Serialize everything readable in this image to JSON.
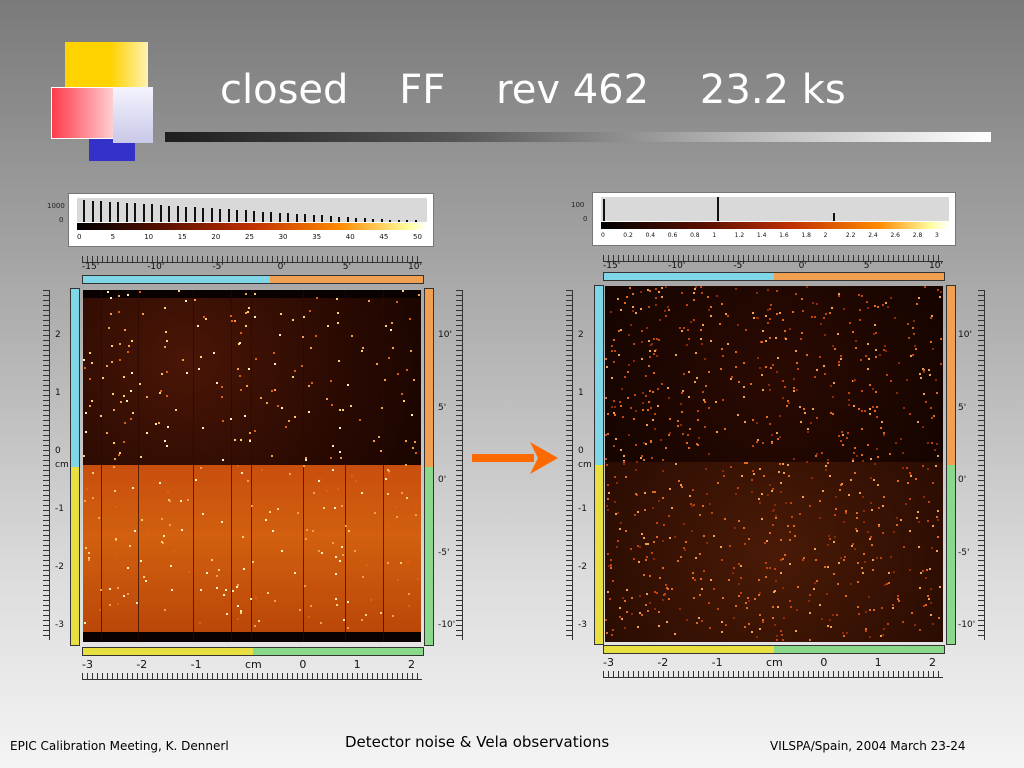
{
  "slide": {
    "title": "closed    FF    rev 462    23.2 ks"
  },
  "left_panel": {
    "hist_y_labels": [
      "1000",
      "0"
    ],
    "hist_x_labels": [
      "0",
      "5",
      "10",
      "15",
      "20",
      "25",
      "30",
      "35",
      "40",
      "45",
      "50"
    ],
    "top_axis_labels": [
      "-15'",
      "-10'",
      "-5'",
      "0'",
      "5'",
      "10'"
    ],
    "left_axis_labels": [
      "2",
      "1",
      "0",
      "-1",
      "-2",
      "-3"
    ],
    "left_axis_unit": "cm",
    "right_axis_labels": [
      "10'",
      "5'",
      "0'",
      "-5'",
      "-10'"
    ],
    "bottom_axis_labels": [
      "-3",
      "-2",
      "-1",
      "cm",
      "0",
      "1",
      "2"
    ]
  },
  "right_panel": {
    "hist_y_labels": [
      "100",
      "0"
    ],
    "hist_x_labels": [
      "0",
      "0.2",
      "0.4",
      "0.6",
      "0.8",
      "1",
      "1.2",
      "1.4",
      "1.6",
      "1.8",
      "2",
      "2.2",
      "2.4",
      "2.6",
      "2.8",
      "3"
    ],
    "top_axis_labels": [
      "-15'",
      "-10'",
      "-5'",
      "0'",
      "5'",
      "10'"
    ],
    "left_axis_labels": [
      "2",
      "1",
      "0",
      "-1",
      "-2",
      "-3"
    ],
    "left_axis_unit": "cm",
    "right_axis_labels": [
      "10'",
      "5'",
      "0'",
      "-5'",
      "-10'"
    ],
    "bottom_axis_labels": [
      "-3",
      "-2",
      "-1",
      "cm",
      "0",
      "1",
      "2"
    ]
  },
  "footer": {
    "left": "EPIC Calibration Meeting, K. Dennerl",
    "center": "Detector noise & Vela observations",
    "right": "VILSPA/Spain, 2004 March 23-24"
  },
  "colors": {
    "accent_arrow": "#ff6a00",
    "title_text": "#ffffff",
    "strip_cyan": "#7fd6e6",
    "strip_orange": "#f0a050",
    "strip_green": "#8ad88a",
    "strip_yellow": "#e8e040"
  }
}
